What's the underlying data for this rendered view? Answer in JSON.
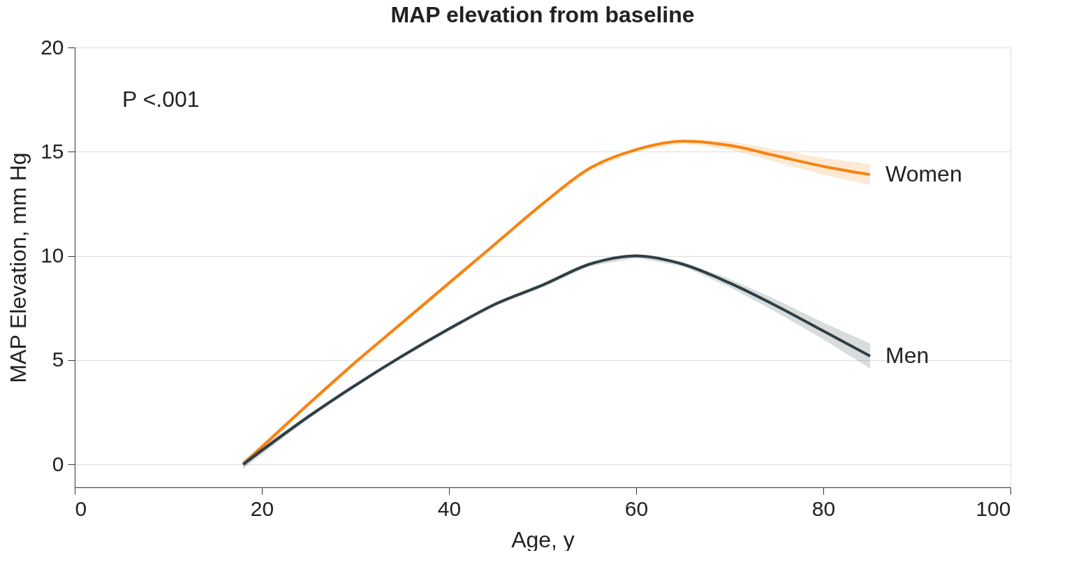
{
  "chart_data": {
    "type": "line",
    "title": "MAP elevation from baseline",
    "xlabel": "Age, y",
    "ylabel": "MAP Elevation, mm Hg",
    "annotations": [
      "P <.001"
    ],
    "x": [
      18,
      25,
      30,
      35,
      40,
      45,
      50,
      55,
      60,
      65,
      70,
      75,
      80,
      85
    ],
    "series": [
      {
        "name": "Women",
        "color": "#f7830f",
        "values": [
          0,
          2.9,
          4.9,
          6.8,
          8.7,
          10.6,
          12.5,
          14.2,
          15.1,
          15.5,
          15.3,
          14.8,
          14.3,
          13.9
        ],
        "lower": [
          -0.2,
          2.8,
          4.8,
          6.7,
          8.6,
          10.5,
          12.4,
          14.1,
          15.0,
          15.4,
          15.1,
          14.5,
          13.9,
          13.4
        ],
        "upper": [
          0.2,
          3.0,
          5.0,
          6.9,
          8.8,
          10.7,
          12.6,
          14.3,
          15.2,
          15.6,
          15.5,
          15.1,
          14.7,
          14.4
        ]
      },
      {
        "name": "Men",
        "color": "#2e3f45",
        "values": [
          0,
          2.3,
          3.8,
          5.2,
          6.5,
          7.7,
          8.6,
          9.6,
          10.0,
          9.6,
          8.7,
          7.6,
          6.4,
          5.2
        ],
        "lower": [
          -0.2,
          2.2,
          3.7,
          5.1,
          6.4,
          7.6,
          8.5,
          9.5,
          9.9,
          9.5,
          8.5,
          7.3,
          6.0,
          4.6
        ],
        "upper": [
          0.2,
          2.4,
          3.9,
          5.3,
          6.6,
          7.8,
          8.7,
          9.7,
          10.1,
          9.7,
          8.9,
          7.9,
          6.8,
          5.8
        ]
      }
    ],
    "xlim": [
      0,
      100
    ],
    "xticks": [
      0,
      20,
      40,
      60,
      80,
      100
    ],
    "ylim": [
      -1.1,
      20
    ],
    "yticks": [
      0,
      5,
      10,
      15,
      20
    ],
    "grid": "y",
    "line_style": "solid",
    "marker": "none"
  }
}
